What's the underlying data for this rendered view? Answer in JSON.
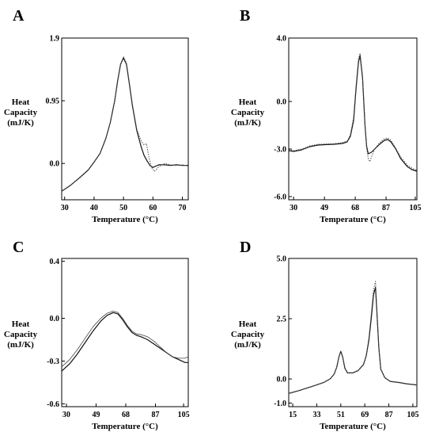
{
  "chart_data": [
    {
      "panel": "A",
      "type": "line",
      "ylabel": [
        "Heat",
        "Capacity",
        "(mJ/K)"
      ],
      "xlabel": "Temperature (°C)",
      "xlim": [
        29,
        72
      ],
      "ylim": [
        -0.55,
        1.9
      ],
      "xticks": [
        30,
        40,
        50,
        60,
        70
      ],
      "yticks": [
        1.9,
        0.95,
        0.0
      ],
      "ytick_labels": [
        "1.9",
        "0.95",
        "0.0"
      ],
      "series": [
        {
          "style": "solid",
          "x": [
            29,
            32,
            35,
            38,
            40,
            42,
            44,
            45.5,
            47,
            48,
            49,
            50,
            51,
            52,
            53,
            54.5,
            56,
            57,
            58,
            59,
            60,
            61,
            62,
            64,
            66,
            68,
            70,
            72
          ],
          "y": [
            -0.42,
            -0.33,
            -0.22,
            -0.1,
            0.02,
            0.15,
            0.38,
            0.62,
            0.95,
            1.25,
            1.5,
            1.6,
            1.5,
            1.2,
            0.88,
            0.5,
            0.25,
            0.12,
            0.04,
            -0.03,
            -0.06,
            -0.04,
            -0.02,
            -0.02,
            -0.03,
            -0.02,
            -0.03,
            -0.03
          ]
        },
        {
          "style": "dotted",
          "x": [
            29,
            32,
            35,
            38,
            40,
            42,
            44,
            45.5,
            47,
            48,
            49,
            50,
            51,
            52,
            53,
            54.5,
            56,
            57,
            57.8,
            58.5,
            59.5,
            60.5,
            62,
            64,
            66,
            68,
            70,
            72
          ],
          "y": [
            -0.42,
            -0.33,
            -0.22,
            -0.1,
            0.02,
            0.15,
            0.38,
            0.62,
            0.95,
            1.25,
            1.5,
            1.62,
            1.52,
            1.22,
            0.9,
            0.52,
            0.34,
            0.28,
            0.3,
            0.12,
            -0.06,
            -0.12,
            -0.05,
            0.0,
            -0.02,
            -0.03,
            -0.02,
            -0.04
          ]
        }
      ]
    },
    {
      "panel": "B",
      "type": "line",
      "ylabel": [
        "Heat",
        "Capacity",
        "(mJ/K)"
      ],
      "xlabel": "Temperature (°C)",
      "xlim": [
        27,
        106
      ],
      "ylim": [
        -6.2,
        4.0
      ],
      "xticks": [
        30,
        49,
        68,
        87,
        105
      ],
      "yticks": [
        4.0,
        0.0,
        -3.0,
        -6.0
      ],
      "ytick_labels": [
        "4.0",
        "0.0",
        "-3.0",
        "-6.0"
      ],
      "series": [
        {
          "style": "solid",
          "x": [
            27,
            30,
            35,
            40,
            45,
            50,
            55,
            60,
            63,
            65,
            67,
            68.5,
            70,
            71,
            72.5,
            74,
            75,
            76,
            78,
            80,
            83,
            86,
            88,
            90,
            93,
            96,
            100,
            103,
            106
          ],
          "y": [
            -3.1,
            -3.15,
            -3.05,
            -2.85,
            -2.75,
            -2.72,
            -2.7,
            -2.65,
            -2.55,
            -2.2,
            -1.2,
            0.8,
            2.5,
            2.9,
            1.5,
            -1.5,
            -2.8,
            -3.3,
            -3.2,
            -3.0,
            -2.7,
            -2.45,
            -2.4,
            -2.55,
            -3.0,
            -3.6,
            -4.1,
            -4.3,
            -4.4
          ]
        },
        {
          "style": "dotted",
          "x": [
            27,
            30,
            35,
            40,
            45,
            50,
            55,
            60,
            63,
            65,
            67,
            68.5,
            70,
            71,
            72.5,
            74,
            75,
            76,
            77,
            78,
            80,
            83,
            86,
            88,
            90,
            93,
            96,
            100,
            103,
            106
          ],
          "y": [
            -3.05,
            -3.1,
            -3.0,
            -2.8,
            -2.7,
            -2.68,
            -2.66,
            -2.6,
            -2.5,
            -2.1,
            -1.0,
            1.0,
            2.7,
            3.05,
            1.6,
            -1.4,
            -2.9,
            -3.6,
            -3.8,
            -3.5,
            -3.0,
            -2.6,
            -2.35,
            -2.3,
            -2.45,
            -2.95,
            -3.5,
            -4.0,
            -4.2,
            -4.35
          ]
        }
      ]
    },
    {
      "panel": "C",
      "type": "line",
      "ylabel": [
        "Heat",
        "Capacity",
        "(mJ/K)"
      ],
      "xlabel": "Temperature (°C)",
      "xlim": [
        27,
        108
      ],
      "ylim": [
        -0.62,
        0.42
      ],
      "xticks": [
        30,
        49,
        68,
        87,
        105
      ],
      "yticks": [
        0.4,
        0.0,
        -0.3,
        -0.6
      ],
      "ytick_labels": [
        "0.4",
        "0.0",
        "-0.3",
        "-0.6"
      ],
      "series": [
        {
          "style": "solid",
          "x": [
            27,
            32,
            37,
            42,
            47,
            52,
            56,
            60,
            63,
            66,
            69,
            72,
            75,
            78,
            82,
            86,
            90,
            94,
            98,
            102,
            106,
            108
          ],
          "y": [
            -0.37,
            -0.32,
            -0.25,
            -0.17,
            -0.09,
            -0.02,
            0.02,
            0.04,
            0.03,
            -0.01,
            -0.06,
            -0.1,
            -0.12,
            -0.13,
            -0.15,
            -0.18,
            -0.21,
            -0.24,
            -0.27,
            -0.29,
            -0.31,
            -0.31
          ]
        },
        {
          "style": "thin",
          "x": [
            27,
            32,
            37,
            42,
            47,
            52,
            56,
            60,
            63,
            66,
            69,
            72,
            75,
            78,
            82,
            86,
            90,
            94,
            98,
            102,
            106,
            108
          ],
          "y": [
            -0.34,
            -0.29,
            -0.22,
            -0.14,
            -0.06,
            0.0,
            0.035,
            0.05,
            0.04,
            0.0,
            -0.05,
            -0.09,
            -0.11,
            -0.115,
            -0.13,
            -0.16,
            -0.2,
            -0.24,
            -0.27,
            -0.28,
            -0.28,
            -0.27
          ]
        }
      ]
    },
    {
      "panel": "D",
      "type": "line",
      "ylabel": [
        "Heat",
        "Capacity",
        "(mJ/K)"
      ],
      "xlabel": "Temperature (°C)",
      "xlim": [
        12,
        108
      ],
      "ylim": [
        -1.15,
        5.0
      ],
      "xticks": [
        15,
        33,
        51,
        69,
        87,
        105
      ],
      "yticks": [
        5.0,
        2.5,
        0.0,
        -1.0
      ],
      "ytick_labels": [
        "5.0",
        "2.5",
        "0.0",
        "-1.0"
      ],
      "series": [
        {
          "style": "solid",
          "x": [
            12,
            20,
            30,
            38,
            43,
            46,
            48,
            49.5,
            51,
            52.5,
            54,
            56,
            60,
            64,
            68,
            70,
            72,
            74,
            75.5,
            77,
            78,
            79.5,
            81,
            84,
            88,
            95,
            100,
            108
          ],
          "y": [
            -0.6,
            -0.48,
            -0.3,
            -0.15,
            0.0,
            0.2,
            0.5,
            0.9,
            1.15,
            0.9,
            0.45,
            0.25,
            0.25,
            0.35,
            0.6,
            0.95,
            1.6,
            2.6,
            3.5,
            3.8,
            2.8,
            1.3,
            0.4,
            0.05,
            -0.1,
            -0.15,
            -0.2,
            -0.25
          ]
        },
        {
          "style": "dotted",
          "x": [
            12,
            20,
            30,
            38,
            43,
            46,
            48,
            49.5,
            51,
            52.5,
            54,
            56,
            60,
            64,
            68,
            70,
            72,
            74,
            75.5,
            77,
            78,
            79.5,
            81,
            84,
            88,
            95,
            100,
            108
          ],
          "y": [
            -0.6,
            -0.48,
            -0.3,
            -0.15,
            0.0,
            0.2,
            0.5,
            0.9,
            1.15,
            0.9,
            0.45,
            0.25,
            0.25,
            0.35,
            0.6,
            0.95,
            1.7,
            2.8,
            3.7,
            4.05,
            2.9,
            1.3,
            0.4,
            0.05,
            -0.1,
            -0.15,
            -0.2,
            -0.25
          ]
        }
      ]
    }
  ]
}
